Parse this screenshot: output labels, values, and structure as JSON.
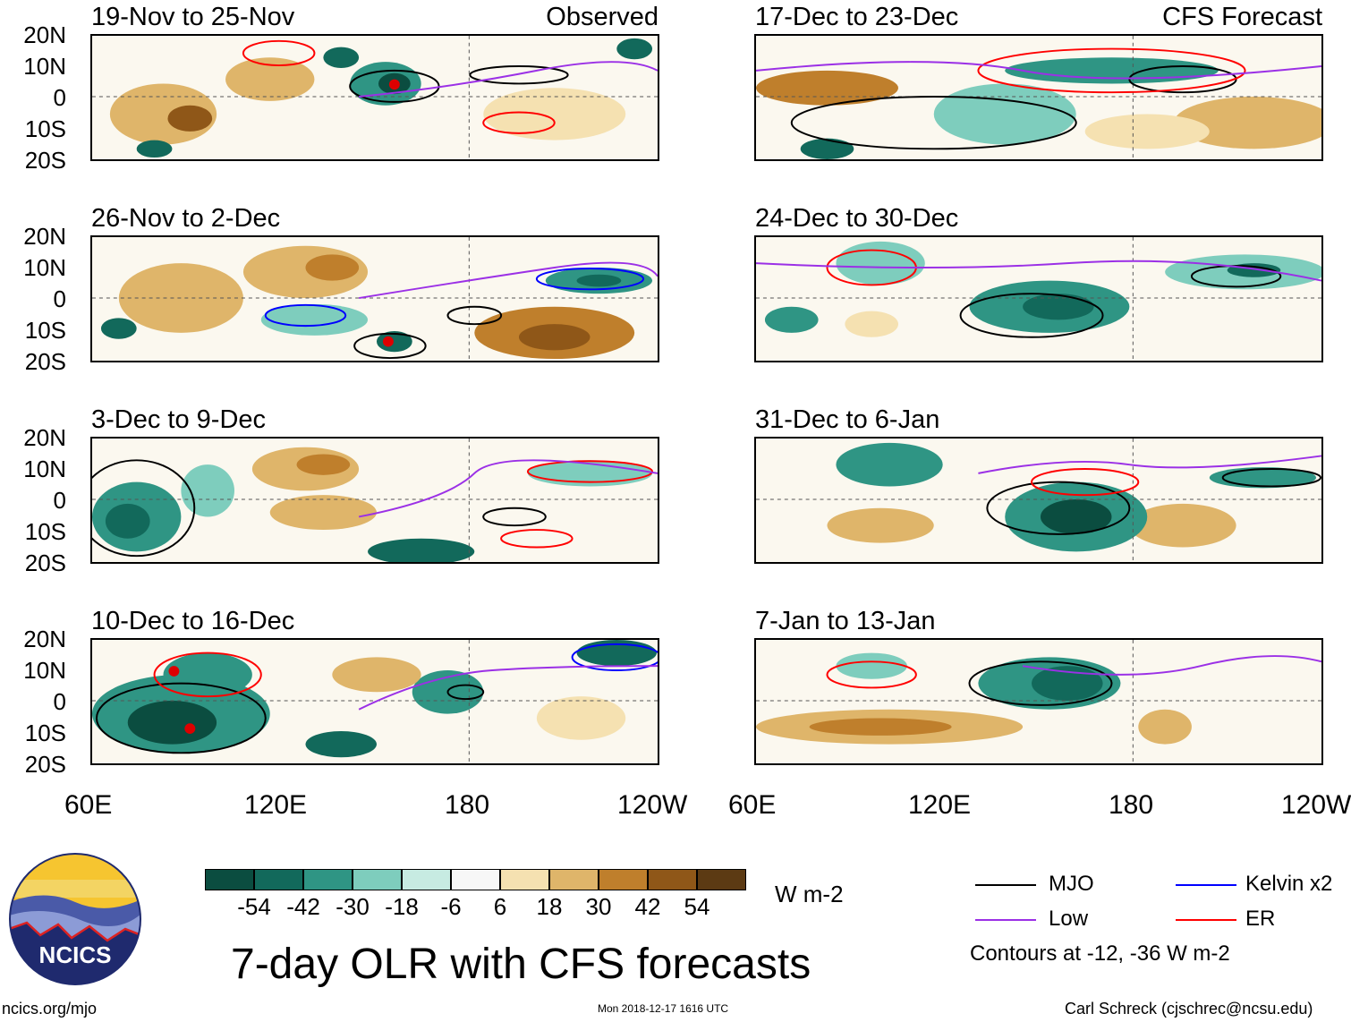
{
  "left_header": "Observed",
  "right_header": "CFS Forecast",
  "panels_left": [
    {
      "title": "19-Nov to 25-Nov"
    },
    {
      "title": "26-Nov to 2-Dec"
    },
    {
      "title": "3-Dec to 9-Dec"
    },
    {
      "title": "10-Dec to 16-Dec"
    }
  ],
  "panels_right": [
    {
      "title": "17-Dec to 23-Dec"
    },
    {
      "title": "24-Dec to 30-Dec"
    },
    {
      "title": "31-Dec to 6-Jan"
    },
    {
      "title": "7-Jan to 13-Jan"
    }
  ],
  "y_ticks": [
    "20N",
    "10N",
    "0",
    "10S",
    "20S"
  ],
  "x_ticks": [
    "60E",
    "120E",
    "180",
    "120W"
  ],
  "colorbar": {
    "unit": "W m-2",
    "labels": [
      "-54",
      "-42",
      "-30",
      "-18",
      "-6",
      "6",
      "18",
      "30",
      "42",
      "54"
    ],
    "colors": [
      "#0b4d40",
      "#12695b",
      "#2f9584",
      "#7ecdbd",
      "#c7ebe2",
      "#f7f7f7",
      "#f5e1b1",
      "#dfb56a",
      "#bf7f2c",
      "#8f5718",
      "#5c3a13"
    ]
  },
  "legend": {
    "mjo": "MJO",
    "low": "Low",
    "kelvin": "Kelvin x2",
    "er": "ER",
    "contours": "Contours at -12, -36 W m-2",
    "colors": {
      "mjo": "#000000",
      "low": "#9b30e6",
      "kelvin": "#0000ff",
      "er": "#ff0000"
    }
  },
  "logo": "NCICS",
  "main_title": "7-day OLR with CFS forecasts",
  "footer": {
    "url": "ncics.org/mjo",
    "timestamp": "Mon 2018-12-17 1616 UTC",
    "credit": "Carl Schreck (cjschrec@ncsu.edu)"
  }
}
